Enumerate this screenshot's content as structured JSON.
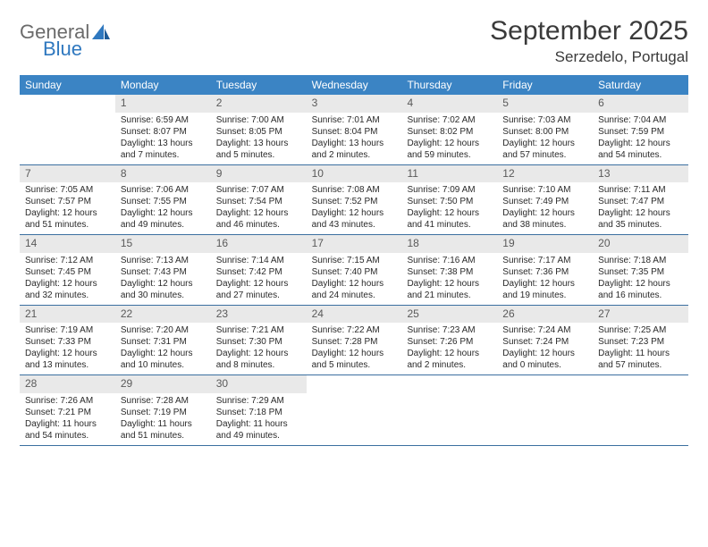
{
  "logo": {
    "general": "General",
    "blue": "Blue"
  },
  "title": "September 2025",
  "location": "Serzedelo, Portugal",
  "colors": {
    "header_bg": "#3b84c4",
    "header_text": "#ffffff",
    "daynum_bg": "#e9e9e9",
    "daynum_text": "#5a5a5a",
    "rule": "#3b6fa0",
    "logo_blue": "#2f78bf",
    "logo_gray": "#6b6b6b"
  },
  "weekdays": [
    "Sunday",
    "Monday",
    "Tuesday",
    "Wednesday",
    "Thursday",
    "Friday",
    "Saturday"
  ],
  "weeks": [
    [
      null,
      {
        "n": "1",
        "sr": "Sunrise: 6:59 AM",
        "ss": "Sunset: 8:07 PM",
        "d1": "Daylight: 13 hours",
        "d2": "and 7 minutes."
      },
      {
        "n": "2",
        "sr": "Sunrise: 7:00 AM",
        "ss": "Sunset: 8:05 PM",
        "d1": "Daylight: 13 hours",
        "d2": "and 5 minutes."
      },
      {
        "n": "3",
        "sr": "Sunrise: 7:01 AM",
        "ss": "Sunset: 8:04 PM",
        "d1": "Daylight: 13 hours",
        "d2": "and 2 minutes."
      },
      {
        "n": "4",
        "sr": "Sunrise: 7:02 AM",
        "ss": "Sunset: 8:02 PM",
        "d1": "Daylight: 12 hours",
        "d2": "and 59 minutes."
      },
      {
        "n": "5",
        "sr": "Sunrise: 7:03 AM",
        "ss": "Sunset: 8:00 PM",
        "d1": "Daylight: 12 hours",
        "d2": "and 57 minutes."
      },
      {
        "n": "6",
        "sr": "Sunrise: 7:04 AM",
        "ss": "Sunset: 7:59 PM",
        "d1": "Daylight: 12 hours",
        "d2": "and 54 minutes."
      }
    ],
    [
      {
        "n": "7",
        "sr": "Sunrise: 7:05 AM",
        "ss": "Sunset: 7:57 PM",
        "d1": "Daylight: 12 hours",
        "d2": "and 51 minutes."
      },
      {
        "n": "8",
        "sr": "Sunrise: 7:06 AM",
        "ss": "Sunset: 7:55 PM",
        "d1": "Daylight: 12 hours",
        "d2": "and 49 minutes."
      },
      {
        "n": "9",
        "sr": "Sunrise: 7:07 AM",
        "ss": "Sunset: 7:54 PM",
        "d1": "Daylight: 12 hours",
        "d2": "and 46 minutes."
      },
      {
        "n": "10",
        "sr": "Sunrise: 7:08 AM",
        "ss": "Sunset: 7:52 PM",
        "d1": "Daylight: 12 hours",
        "d2": "and 43 minutes."
      },
      {
        "n": "11",
        "sr": "Sunrise: 7:09 AM",
        "ss": "Sunset: 7:50 PM",
        "d1": "Daylight: 12 hours",
        "d2": "and 41 minutes."
      },
      {
        "n": "12",
        "sr": "Sunrise: 7:10 AM",
        "ss": "Sunset: 7:49 PM",
        "d1": "Daylight: 12 hours",
        "d2": "and 38 minutes."
      },
      {
        "n": "13",
        "sr": "Sunrise: 7:11 AM",
        "ss": "Sunset: 7:47 PM",
        "d1": "Daylight: 12 hours",
        "d2": "and 35 minutes."
      }
    ],
    [
      {
        "n": "14",
        "sr": "Sunrise: 7:12 AM",
        "ss": "Sunset: 7:45 PM",
        "d1": "Daylight: 12 hours",
        "d2": "and 32 minutes."
      },
      {
        "n": "15",
        "sr": "Sunrise: 7:13 AM",
        "ss": "Sunset: 7:43 PM",
        "d1": "Daylight: 12 hours",
        "d2": "and 30 minutes."
      },
      {
        "n": "16",
        "sr": "Sunrise: 7:14 AM",
        "ss": "Sunset: 7:42 PM",
        "d1": "Daylight: 12 hours",
        "d2": "and 27 minutes."
      },
      {
        "n": "17",
        "sr": "Sunrise: 7:15 AM",
        "ss": "Sunset: 7:40 PM",
        "d1": "Daylight: 12 hours",
        "d2": "and 24 minutes."
      },
      {
        "n": "18",
        "sr": "Sunrise: 7:16 AM",
        "ss": "Sunset: 7:38 PM",
        "d1": "Daylight: 12 hours",
        "d2": "and 21 minutes."
      },
      {
        "n": "19",
        "sr": "Sunrise: 7:17 AM",
        "ss": "Sunset: 7:36 PM",
        "d1": "Daylight: 12 hours",
        "d2": "and 19 minutes."
      },
      {
        "n": "20",
        "sr": "Sunrise: 7:18 AM",
        "ss": "Sunset: 7:35 PM",
        "d1": "Daylight: 12 hours",
        "d2": "and 16 minutes."
      }
    ],
    [
      {
        "n": "21",
        "sr": "Sunrise: 7:19 AM",
        "ss": "Sunset: 7:33 PM",
        "d1": "Daylight: 12 hours",
        "d2": "and 13 minutes."
      },
      {
        "n": "22",
        "sr": "Sunrise: 7:20 AM",
        "ss": "Sunset: 7:31 PM",
        "d1": "Daylight: 12 hours",
        "d2": "and 10 minutes."
      },
      {
        "n": "23",
        "sr": "Sunrise: 7:21 AM",
        "ss": "Sunset: 7:30 PM",
        "d1": "Daylight: 12 hours",
        "d2": "and 8 minutes."
      },
      {
        "n": "24",
        "sr": "Sunrise: 7:22 AM",
        "ss": "Sunset: 7:28 PM",
        "d1": "Daylight: 12 hours",
        "d2": "and 5 minutes."
      },
      {
        "n": "25",
        "sr": "Sunrise: 7:23 AM",
        "ss": "Sunset: 7:26 PM",
        "d1": "Daylight: 12 hours",
        "d2": "and 2 minutes."
      },
      {
        "n": "26",
        "sr": "Sunrise: 7:24 AM",
        "ss": "Sunset: 7:24 PM",
        "d1": "Daylight: 12 hours",
        "d2": "and 0 minutes."
      },
      {
        "n": "27",
        "sr": "Sunrise: 7:25 AM",
        "ss": "Sunset: 7:23 PM",
        "d1": "Daylight: 11 hours",
        "d2": "and 57 minutes."
      }
    ],
    [
      {
        "n": "28",
        "sr": "Sunrise: 7:26 AM",
        "ss": "Sunset: 7:21 PM",
        "d1": "Daylight: 11 hours",
        "d2": "and 54 minutes."
      },
      {
        "n": "29",
        "sr": "Sunrise: 7:28 AM",
        "ss": "Sunset: 7:19 PM",
        "d1": "Daylight: 11 hours",
        "d2": "and 51 minutes."
      },
      {
        "n": "30",
        "sr": "Sunrise: 7:29 AM",
        "ss": "Sunset: 7:18 PM",
        "d1": "Daylight: 11 hours",
        "d2": "and 49 minutes."
      },
      null,
      null,
      null,
      null
    ]
  ]
}
